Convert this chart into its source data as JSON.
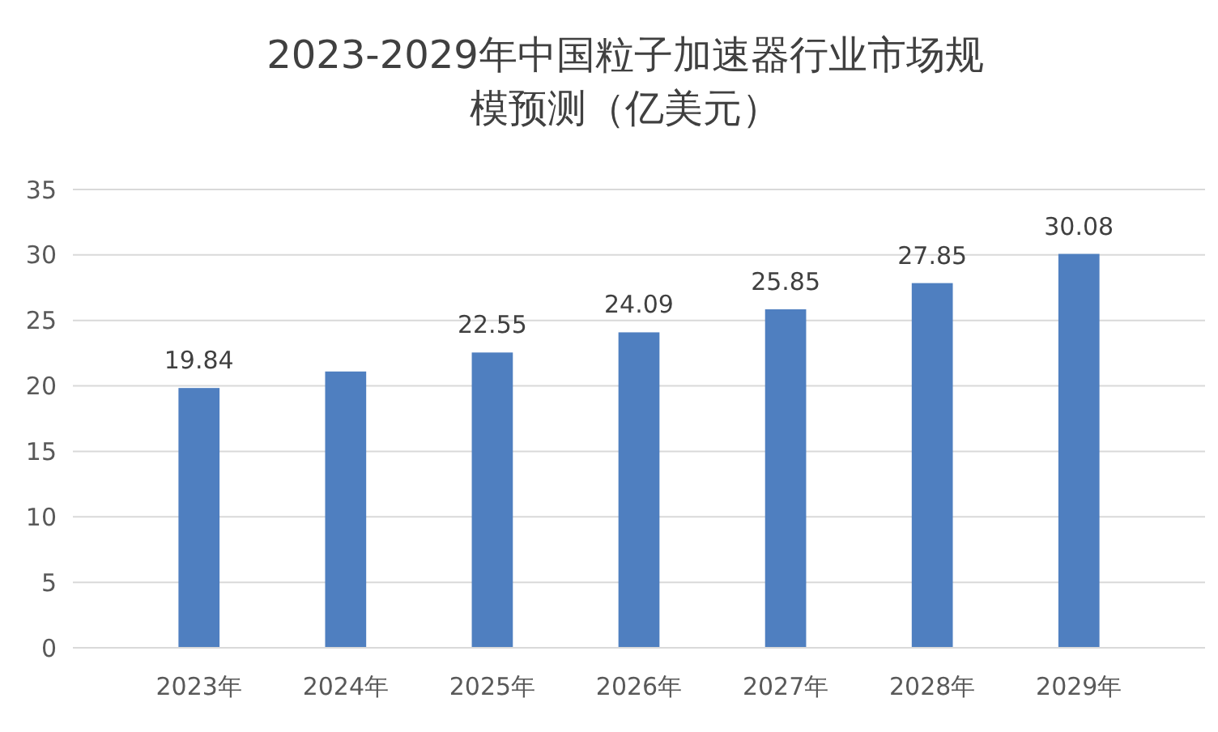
{
  "chart_data": {
    "type": "bar",
    "title": "2023-2029年中国粒子加速器行业市场规模预测（亿美元）",
    "categories": [
      "2023年",
      "2024年",
      "2025年",
      "2026年",
      "2027年",
      "2028年",
      "2029年"
    ],
    "values": [
      19.84,
      21.1,
      22.55,
      24.09,
      25.85,
      27.85,
      30.08
    ],
    "value_labels": [
      "19.84",
      null,
      "22.55",
      "24.09",
      "25.85",
      "27.85",
      "30.08"
    ],
    "color": "#4f7fc0",
    "ylim": [
      0,
      35
    ],
    "yticks": [
      0,
      5,
      10,
      15,
      20,
      25,
      30,
      35
    ],
    "grid": "y"
  }
}
